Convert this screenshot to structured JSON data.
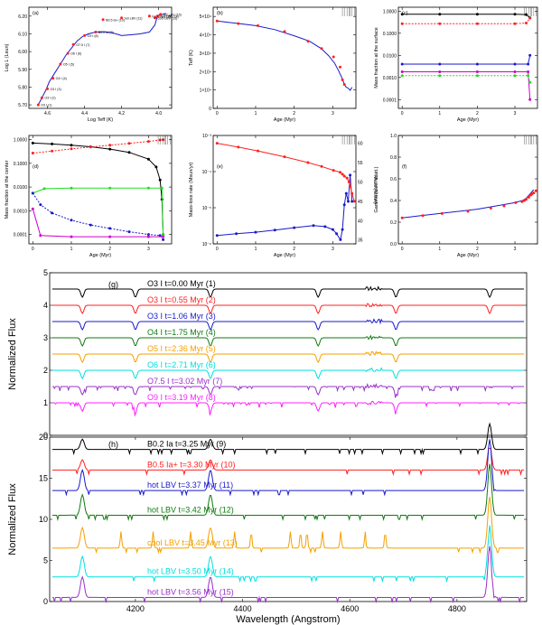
{
  "chart_data": [
    {
      "id": "a",
      "type": "line",
      "panel_label": "(a)",
      "xlabel": "Log Teff (K)",
      "ylabel": "Log L (Lsun)",
      "xlim": [
        4.7,
        3.93
      ],
      "ylim": [
        5.68,
        6.25
      ],
      "xticks": [
        "4.6",
        "4.4",
        "4.2",
        "4.0"
      ],
      "xtick_values": [
        4.6,
        4.4,
        4.2,
        4.0
      ],
      "yticks": [
        "5.70",
        "5.80",
        "5.90",
        "6.00",
        "6.10",
        "6.20"
      ],
      "ytick_values": [
        5.7,
        5.8,
        5.9,
        6.0,
        6.1,
        6.2
      ],
      "series": [
        {
          "name": "track",
          "color": "#1a1acc",
          "x": [
            4.65,
            4.63,
            4.61,
            4.59,
            4.56,
            4.53,
            4.5,
            4.47,
            4.44,
            4.41,
            4.38,
            4.34,
            4.3,
            4.26,
            4.23,
            4.2,
            4.15,
            4.1,
            4.05,
            4.02,
            4.01,
            4.005,
            4.0,
            3.98,
            3.96
          ],
          "y": [
            5.7,
            5.74,
            5.78,
            5.83,
            5.88,
            5.93,
            5.98,
            6.02,
            6.06,
            6.085,
            6.1,
            6.11,
            6.112,
            6.108,
            6.1,
            6.09,
            6.095,
            6.1,
            6.11,
            6.15,
            6.19,
            6.2,
            6.205,
            6.21,
            6.215
          ]
        },
        {
          "name": "models",
          "color": "#ff2020",
          "x": [
            4.65,
            4.63,
            4.6,
            4.57,
            4.53,
            4.49,
            4.46,
            4.4,
            4.34,
            4.3,
            4.2,
            4.05,
            4.02,
            4.005,
            3.99
          ],
          "y": [
            5.7,
            5.74,
            5.79,
            5.85,
            5.93,
            5.99,
            6.04,
            6.09,
            6.11,
            6.18,
            6.19,
            6.2,
            6.19,
            6.2,
            6.21
          ]
        }
      ],
      "point_labels": [
        "O3 I (1)",
        "O3 I (2)",
        "O3 I (3)",
        "O4 I (4)",
        "O5 I (5)",
        "O6 I (6)",
        "O7.5 I (7)",
        "O9 I (8)",
        "B0.2 Ia (9)",
        "B0.5 Ia+ (10)",
        "hot LBV (11)",
        "hot LBV (12)",
        "cool LBV (13)",
        "hot LBV (14)",
        "hot LBV (15)"
      ]
    },
    {
      "id": "b",
      "type": "line",
      "panel_label": "(b)",
      "xlabel": "Age (Myr)",
      "ylabel": "Teff (K)",
      "xlim": [
        -0.1,
        3.6
      ],
      "ylim": [
        0,
        55000
      ],
      "xticks": [
        "0",
        "1",
        "2",
        "3"
      ],
      "xtick_values": [
        0,
        1,
        2,
        3
      ],
      "yticks": [
        "0",
        "1×10⁴",
        "2×10⁴",
        "3×10⁴",
        "4×10⁴",
        "5×10⁴"
      ],
      "ytick_values": [
        0,
        10000,
        20000,
        30000,
        40000,
        50000
      ],
      "series": [
        {
          "name": "Teff",
          "color": "#1a1acc",
          "x": [
            0.0,
            0.5,
            1.0,
            1.5,
            2.0,
            2.4,
            2.7,
            2.9,
            3.05,
            3.15,
            3.25,
            3.3,
            3.35,
            3.4,
            3.45,
            3.5
          ],
          "y": [
            47500,
            46300,
            45000,
            42800,
            39500,
            36500,
            32500,
            28500,
            24500,
            20500,
            16000,
            13000,
            11500,
            11000,
            9800,
            11500
          ]
        },
        {
          "name": "models",
          "color": "#ff2020",
          "x": [
            0.0,
            0.55,
            1.06,
            1.75,
            2.36,
            2.71,
            3.02,
            3.19,
            3.25,
            3.3
          ],
          "y": [
            47500,
            46100,
            45000,
            41800,
            36500,
            32500,
            28000,
            22500,
            15500,
            13000
          ]
        }
      ]
    },
    {
      "id": "c",
      "type": "line",
      "panel_label": "(c)",
      "xlabel": "Age (Myr)",
      "ylabel": "Mass fraction at the surface",
      "xlim": [
        -0.1,
        3.6
      ],
      "ylim": [
        4e-05,
        1.5
      ],
      "yscale": "log",
      "xticks": [
        "0",
        "1",
        "2",
        "3"
      ],
      "xtick_values": [
        0,
        1,
        2,
        3
      ],
      "yticks": [
        "1.0000",
        "0.1000",
        "0.0100",
        "0.0010",
        "0.0001"
      ],
      "ytick_values": [
        1,
        0.1,
        0.01,
        0.001,
        0.0001
      ],
      "series": [
        {
          "name": "H",
          "color": "#000000",
          "x": [
            0,
            1,
            2,
            3,
            3.3,
            3.4
          ],
          "y": [
            0.72,
            0.72,
            0.72,
            0.72,
            0.7,
            0.5
          ]
        },
        {
          "name": "He",
          "color": "#ff2020",
          "x": [
            0,
            1,
            2,
            3,
            3.3,
            3.4
          ],
          "y": [
            0.27,
            0.27,
            0.27,
            0.27,
            0.29,
            0.48
          ]
        },
        {
          "name": "N",
          "color": "#1a1acc",
          "x": [
            0,
            1,
            2,
            3,
            3.35,
            3.4
          ],
          "y": [
            0.004,
            0.004,
            0.004,
            0.004,
            0.004,
            0.01
          ]
        },
        {
          "name": "C",
          "color": "#cc00cc",
          "x": [
            0,
            1,
            2,
            3,
            3.35,
            3.4
          ],
          "y": [
            0.0018,
            0.0018,
            0.0018,
            0.0018,
            0.0018,
            0.0001
          ]
        },
        {
          "name": "O",
          "color": "#22dd22",
          "x": [
            0,
            1,
            2,
            3,
            3.35,
            3.4
          ],
          "y": [
            0.0012,
            0.0012,
            0.0012,
            0.0012,
            0.0012,
            0.0006
          ]
        }
      ]
    },
    {
      "id": "d",
      "type": "line",
      "panel_label": "(d)",
      "xlabel": "Age (Myr)",
      "ylabel": "Mass fraction at the center",
      "xlim": [
        -0.1,
        3.6
      ],
      "ylim": [
        4e-05,
        1.5
      ],
      "yscale": "log",
      "xticks": [
        "0",
        "1",
        "2",
        "3"
      ],
      "xtick_values": [
        0,
        1,
        2,
        3
      ],
      "yticks": [
        "1.0000",
        "0.1000",
        "0.0100",
        "0.0010",
        "0.0001"
      ],
      "ytick_values": [
        1,
        0.1,
        0.01,
        0.001,
        0.0001
      ],
      "series": [
        {
          "name": "H",
          "color": "#000000",
          "x": [
            0,
            0.5,
            1,
            1.5,
            2,
            2.5,
            3,
            3.2,
            3.3,
            3.35,
            3.38
          ],
          "y": [
            0.72,
            0.66,
            0.58,
            0.5,
            0.4,
            0.29,
            0.15,
            0.07,
            0.02,
            0.003,
            0.0001
          ]
        },
        {
          "name": "He",
          "color": "#ff2020",
          "x": [
            0,
            0.5,
            1,
            1.5,
            2,
            2.5,
            3,
            3.3,
            3.38
          ],
          "y": [
            0.27,
            0.33,
            0.41,
            0.49,
            0.58,
            0.7,
            0.84,
            0.97,
            0.99
          ]
        },
        {
          "name": "N",
          "color": "#22dd22",
          "x": [
            0,
            0.3,
            1,
            2,
            3,
            3.35,
            3.38
          ],
          "y": [
            0.0055,
            0.0085,
            0.009,
            0.009,
            0.009,
            0.009,
            0.0001
          ]
        },
        {
          "name": "O",
          "color": "#1a1acc",
          "x": [
            0,
            0.2,
            0.5,
            1,
            1.5,
            2,
            2.5,
            3,
            3.3,
            3.38
          ],
          "y": [
            0.0055,
            0.0018,
            0.0008,
            0.0004,
            0.00025,
            0.00018,
            0.00013,
            0.0001,
            9e-05,
            6e-05
          ]
        },
        {
          "name": "C",
          "color": "#cc00cc",
          "x": [
            0,
            0.2,
            1,
            2,
            3,
            3.38
          ],
          "y": [
            0.0012,
            9e-05,
            8e-05,
            8e-05,
            8e-05,
            8e-05
          ]
        }
      ]
    },
    {
      "id": "e",
      "type": "line",
      "panel_label": "(e)",
      "xlabel": "Age (Myr)",
      "ylabel": "Mass-loss rate (Msun/yr)",
      "y2label": "Mass (Msun)",
      "xlim": [
        -0.1,
        3.6
      ],
      "ylim": [
        1e-06,
        0.001
      ],
      "yscale": "log",
      "y2lim": [
        34,
        62
      ],
      "xticks": [
        "0",
        "1",
        "2",
        "3"
      ],
      "xtick_values": [
        0,
        1,
        2,
        3
      ],
      "yticks": [
        "10⁻⁶",
        "10⁻⁵",
        "10⁻⁴",
        "10⁻³"
      ],
      "ytick_values": [
        1e-06,
        1e-05,
        0.0001,
        0.001
      ],
      "y2ticks": [
        "35",
        "40",
        "45",
        "50",
        "55",
        "60"
      ],
      "y2tick_values": [
        35,
        40,
        45,
        50,
        55,
        60
      ],
      "series": [
        {
          "name": "Mass-loss rate",
          "color": "#1a1acc",
          "axis": "left",
          "x": [
            0,
            0.5,
            1,
            1.5,
            2,
            2.5,
            2.8,
            3.0,
            3.1,
            3.2,
            3.25,
            3.3,
            3.35,
            3.4,
            3.45,
            3.5
          ],
          "y": [
            1.7e-06,
            1.9e-06,
            2.1e-06,
            2.4e-06,
            2.8e-06,
            3.2e-06,
            3e-06,
            2.5e-06,
            1.9e-06,
            1.3e-06,
            2.5e-06,
            1.2e-05,
            2.5e-05,
            1.5e-05,
            8e-05,
            1.5e-05
          ]
        },
        {
          "name": "Mass",
          "color": "#ff2020",
          "axis": "right",
          "x": [
            0,
            0.55,
            1.06,
            1.75,
            2.36,
            2.71,
            3.02,
            3.19,
            3.25,
            3.3,
            3.37,
            3.42,
            3.45,
            3.5,
            3.56
          ],
          "y": [
            60.0,
            59.0,
            58.0,
            56.5,
            55.0,
            54.0,
            53.0,
            52.5,
            52.0,
            51.5,
            51.0,
            50.0,
            49.0,
            47.0,
            45.0
          ]
        }
      ]
    },
    {
      "id": "f",
      "type": "line",
      "panel_label": "(f)",
      "xlabel": "Age (Myr)",
      "ylabel": "Gamma (elec. scatt.)",
      "xlim": [
        -0.1,
        3.6
      ],
      "ylim": [
        0.0,
        1.0
      ],
      "xticks": [
        "0",
        "1",
        "2",
        "3"
      ],
      "xtick_values": [
        0,
        1,
        2,
        3
      ],
      "yticks": [
        "0.0",
        "0.2",
        "0.4",
        "0.6",
        "0.8",
        "1.0"
      ],
      "ytick_values": [
        0.0,
        0.2,
        0.4,
        0.6,
        0.8,
        1.0
      ],
      "series": [
        {
          "name": "Gamma",
          "color": "#1a1acc",
          "x": [
            0,
            0.5,
            1,
            1.5,
            2,
            2.5,
            3.0,
            3.2,
            3.3,
            3.4,
            3.5
          ],
          "y": [
            0.24,
            0.26,
            0.28,
            0.3,
            0.32,
            0.35,
            0.38,
            0.4,
            0.42,
            0.46,
            0.5
          ]
        },
        {
          "name": "models",
          "color": "#ff2020",
          "x": [
            0,
            0.55,
            1.06,
            1.75,
            2.36,
            2.71,
            3.02,
            3.19,
            3.25,
            3.3,
            3.37,
            3.42,
            3.45,
            3.5,
            3.56
          ],
          "y": [
            0.24,
            0.26,
            0.28,
            0.3,
            0.33,
            0.35,
            0.38,
            0.39,
            0.4,
            0.41,
            0.43,
            0.45,
            0.46,
            0.47,
            0.49
          ]
        }
      ]
    },
    {
      "id": "g",
      "type": "line",
      "panel_label": "(g)",
      "xlabel": "",
      "ylabel": "Normalized Flux",
      "xlim": [
        4040,
        4930
      ],
      "ylim": [
        0,
        5
      ],
      "yticks": [
        "0",
        "1",
        "2",
        "3",
        "4",
        "5"
      ],
      "ytick_values": [
        0,
        1,
        2,
        3,
        4,
        5
      ],
      "series": [
        {
          "name": "O3 I t=0.00 Myr (1)",
          "color": "#000000",
          "offset": 4.5
        },
        {
          "name": "O3 I t=0.55 Myr (2)",
          "color": "#ff2020",
          "offset": 4.0
        },
        {
          "name": "O3 I t=1.06 Myr (3)",
          "color": "#1a1acc",
          "offset": 3.5
        },
        {
          "name": "O4 I t=1.75 Myr (4)",
          "color": "#127a12",
          "offset": 3.0
        },
        {
          "name": "O5 I t=2.36 Myr (5)",
          "color": "#f5a000",
          "offset": 2.5
        },
        {
          "name": "O6 I t=2.71 Myr (6)",
          "color": "#00e0e0",
          "offset": 2.0
        },
        {
          "name": "O7.5 I t=3.02 Myr (7)",
          "color": "#9a30c8",
          "offset": 1.5
        },
        {
          "name": "O9 I t=3.19 Myr (8)",
          "color": "#ff20ff",
          "offset": 1.0
        }
      ]
    },
    {
      "id": "h",
      "type": "line",
      "panel_label": "(h)",
      "xlabel": "Wavelength (Angstrom)",
      "ylabel": "Normalized Flux",
      "xlim": [
        4040,
        4930
      ],
      "ylim": [
        0,
        20
      ],
      "xticks": [
        "4200",
        "4400",
        "4600",
        "4800"
      ],
      "xtick_values": [
        4200,
        4400,
        4600,
        4800
      ],
      "yticks": [
        "0",
        "5",
        "10",
        "15",
        "20"
      ],
      "ytick_values": [
        0,
        5,
        10,
        15,
        20
      ],
      "series": [
        {
          "name": "B0.2 Ia t=3.25 Myr (9)",
          "color": "#000000",
          "offset": 18.5
        },
        {
          "name": "B0.5 Ia+ t=3.30 Myr (10)",
          "color": "#ff2020",
          "offset": 16.0
        },
        {
          "name": "hot LBV t=3.37 Myr (11)",
          "color": "#1a1acc",
          "offset": 13.5
        },
        {
          "name": "hot LBV t=3.42 Myr (12)",
          "color": "#127a12",
          "offset": 10.5
        },
        {
          "name": "cool LBV t=3.45 Myr (13)",
          "color": "#f5a000",
          "offset": 6.5
        },
        {
          "name": "hot LBV t=3.50 Myr (14)",
          "color": "#00e0e0",
          "offset": 3.0
        },
        {
          "name": "hot LBV t=3.56 Myr (15)",
          "color": "#9a30c8",
          "offset": 0.5
        }
      ]
    }
  ]
}
